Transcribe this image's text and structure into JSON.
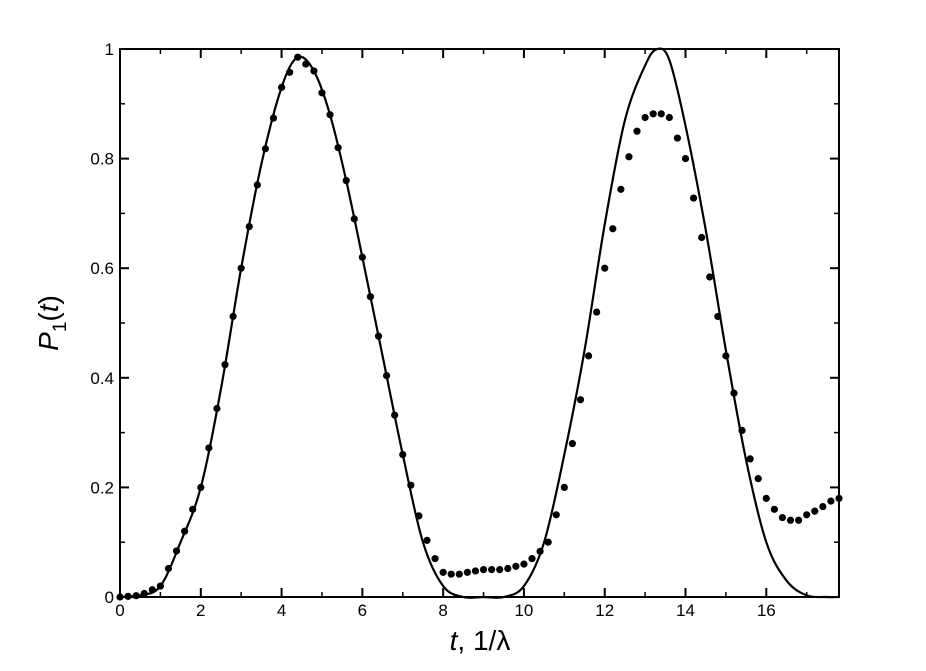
{
  "chart_data": {
    "type": "line",
    "title": "",
    "xlabel": {
      "var": "t",
      "rest": ", 1/λ"
    },
    "ylabel": {
      "var": "P",
      "sub": "1",
      "open": "(",
      "arg": "t",
      "close": ")"
    },
    "xlim": [
      0,
      17.8
    ],
    "ylim": [
      0,
      1
    ],
    "xticks": [
      0,
      2,
      4,
      6,
      8,
      10,
      12,
      14,
      16
    ],
    "xtick_labels": [
      "0",
      "2",
      "4",
      "6",
      "8",
      "10",
      "12",
      "14",
      "16"
    ],
    "yticks": [
      0,
      0.2,
      0.4,
      0.6,
      0.8,
      1
    ],
    "ytick_labels": [
      "0",
      "0.2",
      "0.4",
      "0.6",
      "0.8",
      "1"
    ],
    "grid": false,
    "legend": "none",
    "series": [
      {
        "style": "solid line",
        "color": "#000000",
        "x": [
          0,
          0.5,
          1.0,
          1.5,
          2.0,
          2.5,
          3.0,
          3.5,
          4.0,
          4.4,
          4.8,
          5.2,
          5.6,
          6.0,
          6.5,
          7.0,
          7.5,
          8.0,
          8.5,
          9.0,
          9.5,
          10.0,
          10.5,
          11.0,
          11.5,
          12.0,
          12.5,
          13.0,
          13.3,
          13.6,
          14.0,
          14.5,
          15.0,
          15.5,
          16.0,
          16.5,
          17.0,
          17.5,
          17.8
        ],
        "y": [
          0,
          0.003,
          0.02,
          0.1,
          0.2,
          0.38,
          0.6,
          0.79,
          0.93,
          0.985,
          0.96,
          0.88,
          0.76,
          0.62,
          0.44,
          0.26,
          0.1,
          0.02,
          0.0,
          0.0,
          0.0,
          0.02,
          0.1,
          0.26,
          0.45,
          0.68,
          0.87,
          0.97,
          1.0,
          0.98,
          0.86,
          0.67,
          0.45,
          0.25,
          0.1,
          0.03,
          0.003,
          0.0,
          0.0
        ]
      },
      {
        "style": "filled circle markers",
        "color": "#000000",
        "x": [
          0,
          0.5,
          1.0,
          1.5,
          2.0,
          2.5,
          3.0,
          3.5,
          4.0,
          4.4,
          4.8,
          5.2,
          5.6,
          6.0,
          6.5,
          7.0,
          7.5,
          7.8,
          8.0,
          8.3,
          8.6,
          9.0,
          9.5,
          10.0,
          10.3,
          10.6,
          11.0,
          11.5,
          12.0,
          12.5,
          12.8,
          13.0,
          13.3,
          13.6,
          14.0,
          14.5,
          15.0,
          15.5,
          16.0,
          16.3,
          16.5,
          16.8,
          17.0,
          17.3,
          17.6,
          17.8
        ],
        "y": [
          0,
          0.003,
          0.02,
          0.1,
          0.2,
          0.38,
          0.6,
          0.79,
          0.93,
          0.985,
          0.96,
          0.88,
          0.76,
          0.62,
          0.44,
          0.26,
          0.12,
          0.07,
          0.045,
          0.04,
          0.045,
          0.05,
          0.05,
          0.06,
          0.075,
          0.1,
          0.2,
          0.4,
          0.6,
          0.78,
          0.85,
          0.875,
          0.885,
          0.875,
          0.8,
          0.62,
          0.44,
          0.27,
          0.18,
          0.15,
          0.14,
          0.14,
          0.15,
          0.16,
          0.175,
          0.18
        ]
      }
    ]
  }
}
